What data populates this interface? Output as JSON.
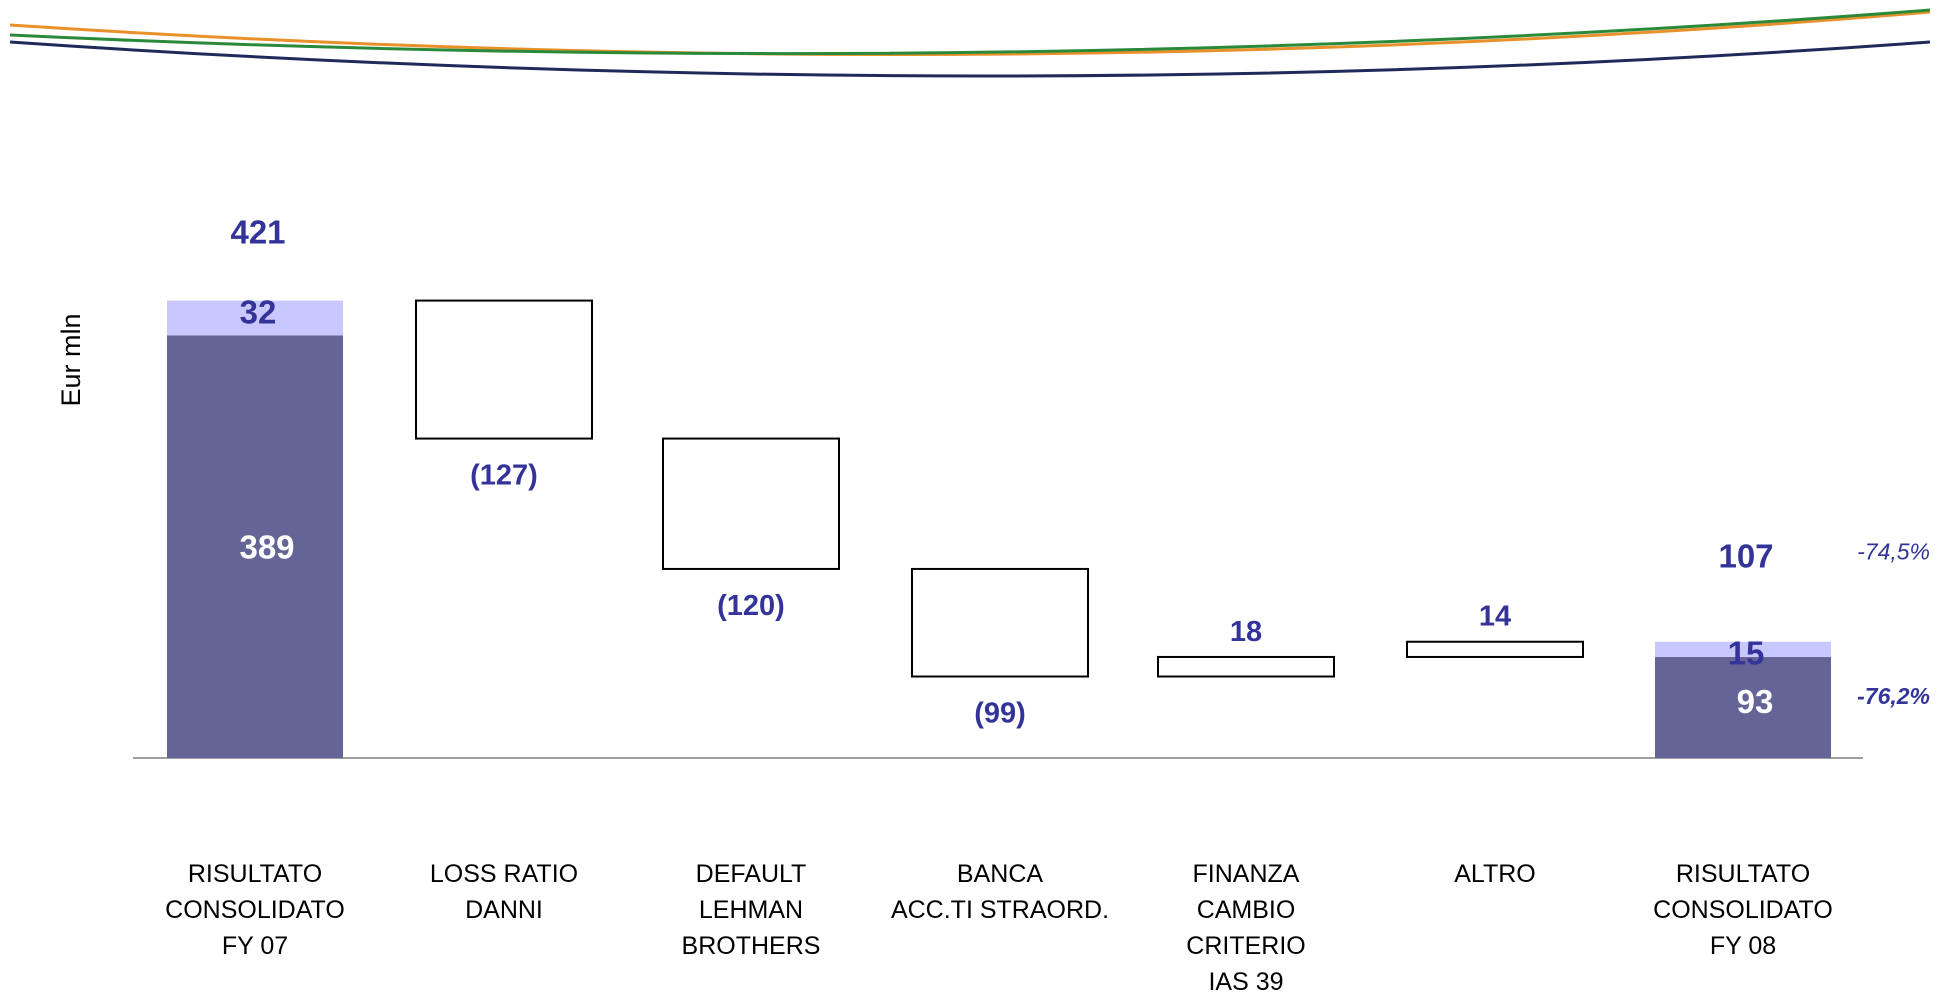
{
  "chart_data": {
    "type": "waterfall",
    "ylabel": "Eur mln",
    "categories": [
      [
        "RISULTATO",
        "CONSOLIDATO",
        "FY 07"
      ],
      [
        "LOSS RATIO",
        "DANNI"
      ],
      [
        "DEFAULT",
        "LEHMAN",
        "BROTHERS"
      ],
      [
        "BANCA",
        "ACC.TI STRAORD."
      ],
      [
        "FINANZA",
        "CAMBIO",
        "CRITERIO",
        "IAS 39"
      ],
      [
        "ALTRO"
      ],
      [
        "RISULTATO",
        "CONSOLIDATO",
        "FY 08"
      ]
    ],
    "totals": [
      {
        "index": 0,
        "base_value": 389,
        "minority_value": 32,
        "total": 421,
        "base_label": "389",
        "minority_label": "32",
        "total_label": "421"
      },
      {
        "index": 6,
        "base_value": 93,
        "minority_value": 15,
        "total": 107,
        "base_label": "93",
        "minority_label": "15",
        "total_label": "107",
        "change_total_label": "-74,5%",
        "change_base_label": "-76,2%"
      }
    ],
    "steps": [
      {
        "index": 1,
        "value": -127,
        "label": "(127)"
      },
      {
        "index": 2,
        "value": -120,
        "label": "(120)"
      },
      {
        "index": 3,
        "value": -99,
        "label": "(99)"
      },
      {
        "index": 4,
        "value": 18,
        "label": "18"
      },
      {
        "index": 5,
        "value": 14,
        "label": "14"
      }
    ],
    "colors": {
      "base": "#646496",
      "minority": "#c8c8ff",
      "value_text": "#333399",
      "inner_text": "#ffffff",
      "step_fill": "#ffffff",
      "step_stroke": "#000000",
      "axis": "#808080",
      "header_lines": [
        "#e8902a",
        "#2a8a3a",
        "#1f2a5a"
      ]
    }
  }
}
